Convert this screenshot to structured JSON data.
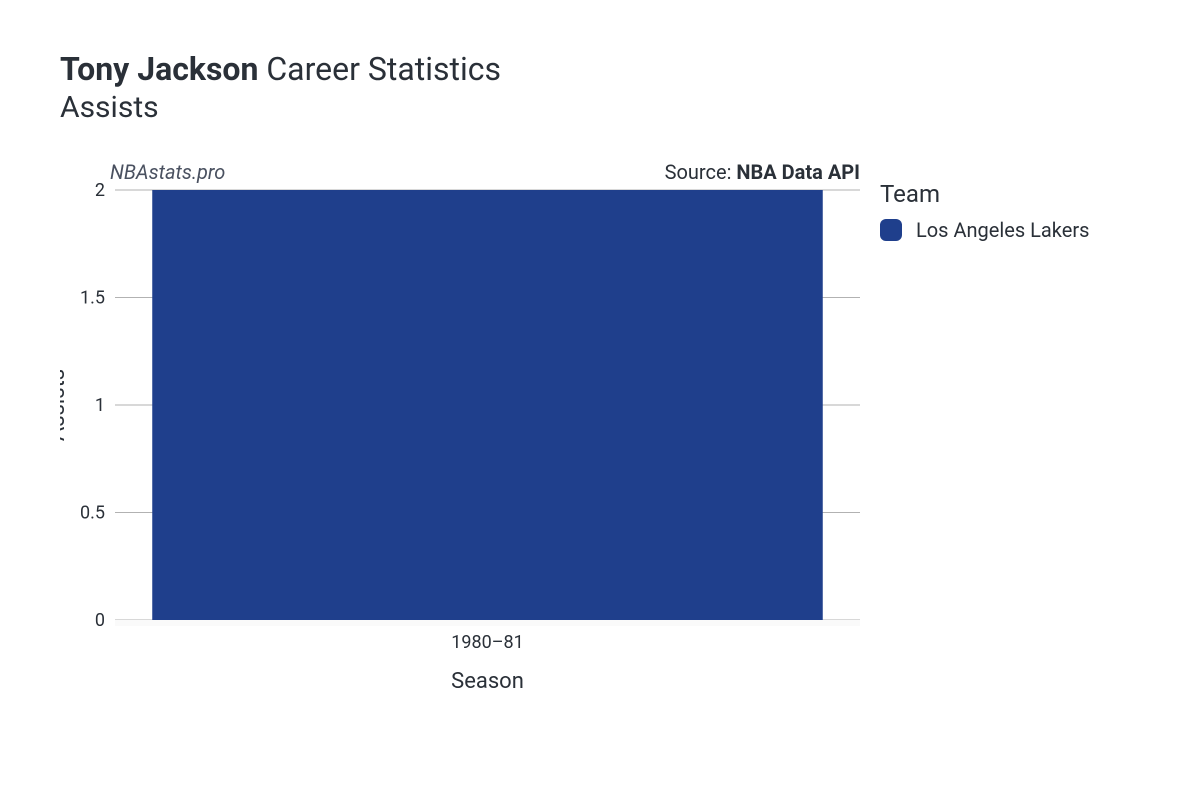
{
  "title": {
    "player_name": "Tony Jackson",
    "rest": "Career Statistics",
    "subtitle": "Assists"
  },
  "meta": {
    "watermark": "NBAstats.pro",
    "source_prefix": "Source: ",
    "source_name": "NBA Data API"
  },
  "chart": {
    "type": "bar",
    "categories": [
      "1980–81"
    ],
    "values": [
      2
    ],
    "bar_colors": [
      "#1f3f8c"
    ],
    "bar_width": 0.9,
    "ylim": [
      0,
      2
    ],
    "yticks": [
      0,
      0.5,
      1,
      1.5,
      2
    ],
    "ytick_labels": [
      "0",
      "0.5",
      "1",
      "1.5",
      "2"
    ],
    "ylabel": "Assists",
    "xlabel": "Season",
    "grid_color": "#808080",
    "axis_color": "#808080",
    "background_color": "#ffffff",
    "label_fontsize": 22,
    "tick_fontsize": 18,
    "tick_color": "#2a3038",
    "plot_bottom_shade": "#fafafa"
  },
  "legend": {
    "title": "Team",
    "items": [
      {
        "label": "Los Angeles Lakers",
        "color": "#1f3f8c"
      }
    ]
  }
}
